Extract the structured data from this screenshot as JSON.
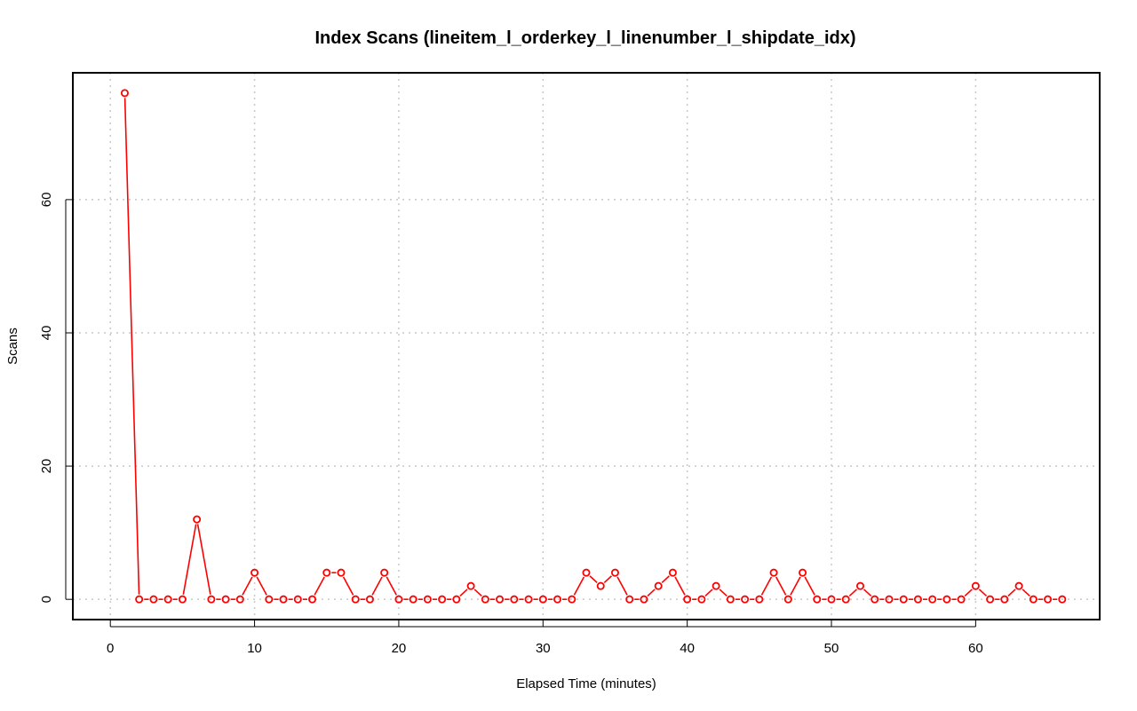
{
  "chart_data": {
    "type": "line",
    "title": "Index Scans (lineitem_l_orderkey_l_linenumber_l_shipdate_idx)",
    "xlabel": "Elapsed Time (minutes)",
    "ylabel": "Scans",
    "xlim": [
      -2.6,
      68.6
    ],
    "ylim": [
      -3.04,
      79.04
    ],
    "x_ticks": [
      0,
      10,
      20,
      30,
      40,
      50,
      60
    ],
    "y_ticks": [
      0,
      20,
      40,
      60
    ],
    "grid": true,
    "series": [
      {
        "color": "#ff0000",
        "marker": "open-circle",
        "x": [
          1,
          2,
          3,
          4,
          5,
          6,
          7,
          8,
          9,
          10,
          11,
          12,
          13,
          14,
          15,
          16,
          17,
          18,
          19,
          20,
          21,
          22,
          23,
          24,
          25,
          26,
          27,
          28,
          29,
          30,
          31,
          32,
          33,
          34,
          35,
          36,
          37,
          38,
          39,
          40,
          41,
          42,
          43,
          44,
          45,
          46,
          47,
          48,
          49,
          50,
          51,
          52,
          53,
          54,
          55,
          56,
          57,
          58,
          59,
          60,
          61,
          62,
          63,
          64,
          65,
          66
        ],
        "values": [
          76,
          0,
          0,
          0,
          0,
          12,
          0,
          0,
          0,
          4,
          0,
          0,
          0,
          0,
          4,
          4,
          0,
          0,
          4,
          0,
          0,
          0,
          0,
          0,
          2,
          0,
          0,
          0,
          0,
          0,
          0,
          0,
          4,
          2,
          4,
          0,
          0,
          2,
          4,
          0,
          0,
          2,
          0,
          0,
          0,
          4,
          0,
          4,
          0,
          0,
          0,
          2,
          0,
          0,
          0,
          0,
          0,
          0,
          0,
          2,
          0,
          0,
          2,
          0,
          0,
          0
        ]
      }
    ]
  }
}
